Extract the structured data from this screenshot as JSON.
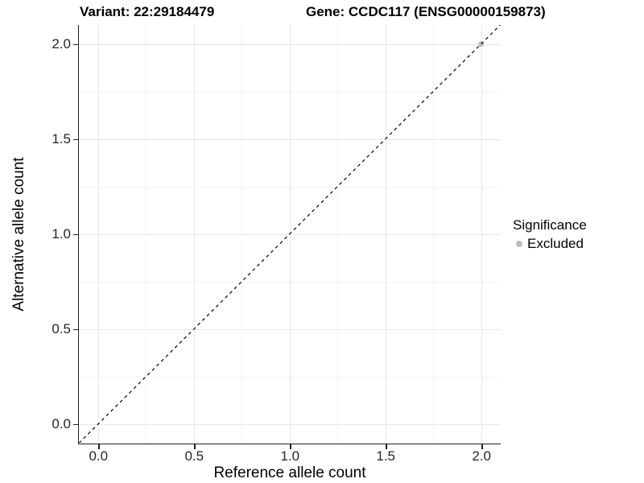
{
  "figure": {
    "title_left": "Variant: 22:29184479",
    "title_right": "Gene: CCDC117 (ENSG00000159873)"
  },
  "chart_data": {
    "type": "scatter",
    "title": "Variant: 22:29184479   Gene: CCDC117 (ENSG00000159873)",
    "xlabel": "Reference allele count",
    "ylabel": "Alternative allele count",
    "xlim": [
      -0.1,
      2.1
    ],
    "ylim": [
      -0.1,
      2.1
    ],
    "xticks": [
      0.0,
      0.5,
      1.0,
      1.5,
      2.0
    ],
    "xtick_labels": [
      "0.0",
      "0.5",
      "1.0",
      "1.5",
      "2.0"
    ],
    "yticks": [
      0.0,
      0.5,
      1.0,
      1.5,
      2.0
    ],
    "ytick_labels": [
      "0.0",
      "0.5",
      "1.0",
      "1.5",
      "2.0"
    ],
    "minor_ticks": [
      0.25,
      0.75,
      1.25,
      1.75
    ],
    "grid": true,
    "points": [
      {
        "x": 2.0,
        "y": 2.0,
        "series": "Excluded"
      }
    ],
    "reference_line": {
      "kind": "identity",
      "from": [
        -0.1,
        -0.1
      ],
      "to": [
        2.1,
        2.1
      ],
      "style": "dashed"
    },
    "legend": {
      "title": "Significance",
      "position": "right",
      "items": [
        {
          "label": "Excluded",
          "color": "#bebebe"
        }
      ]
    },
    "colors": {
      "point_excluded": "#bebebe",
      "reference_line": "#000000",
      "grid_major": "#e7e7e7",
      "grid_minor": "#f4f4f4",
      "axis_line": "#1f1f1f",
      "tick_text": "#262626",
      "title_text": "#000000"
    }
  }
}
